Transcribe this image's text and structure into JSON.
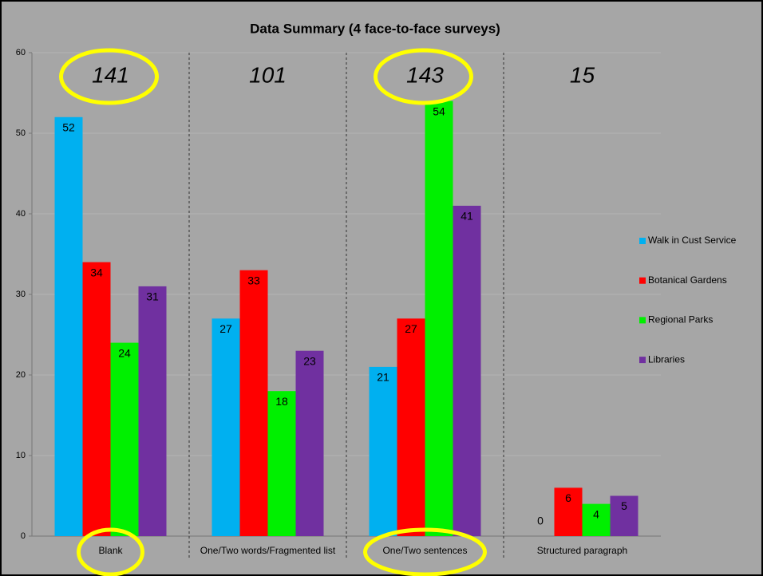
{
  "chart_data": {
    "type": "bar",
    "title": "Data Summary (4 face-to-face surveys)",
    "categories": [
      "Blank",
      "One/Two words/Fragmented list",
      "One/Two sentences",
      "Structured paragraph"
    ],
    "series": [
      {
        "name": "Walk in Cust Service",
        "color": "#00b0f0",
        "values": [
          52,
          27,
          21,
          0
        ]
      },
      {
        "name": "Botanical Gardens",
        "color": "#ff0000",
        "values": [
          34,
          33,
          27,
          6
        ]
      },
      {
        "name": "Regional Parks",
        "color": "#00f000",
        "values": [
          24,
          18,
          54,
          4
        ]
      },
      {
        "name": "Libraries",
        "color": "#7030a0",
        "values": [
          31,
          23,
          41,
          5
        ]
      }
    ],
    "annotations": [
      "141",
      "101",
      "143",
      "15"
    ],
    "highlighted": [
      true,
      false,
      true,
      false
    ],
    "highlight_color": "#ffff00",
    "ylim": [
      0,
      60
    ],
    "yticks": [
      0,
      10,
      20,
      30,
      40,
      50,
      60
    ],
    "grid": true,
    "legend": "right"
  }
}
